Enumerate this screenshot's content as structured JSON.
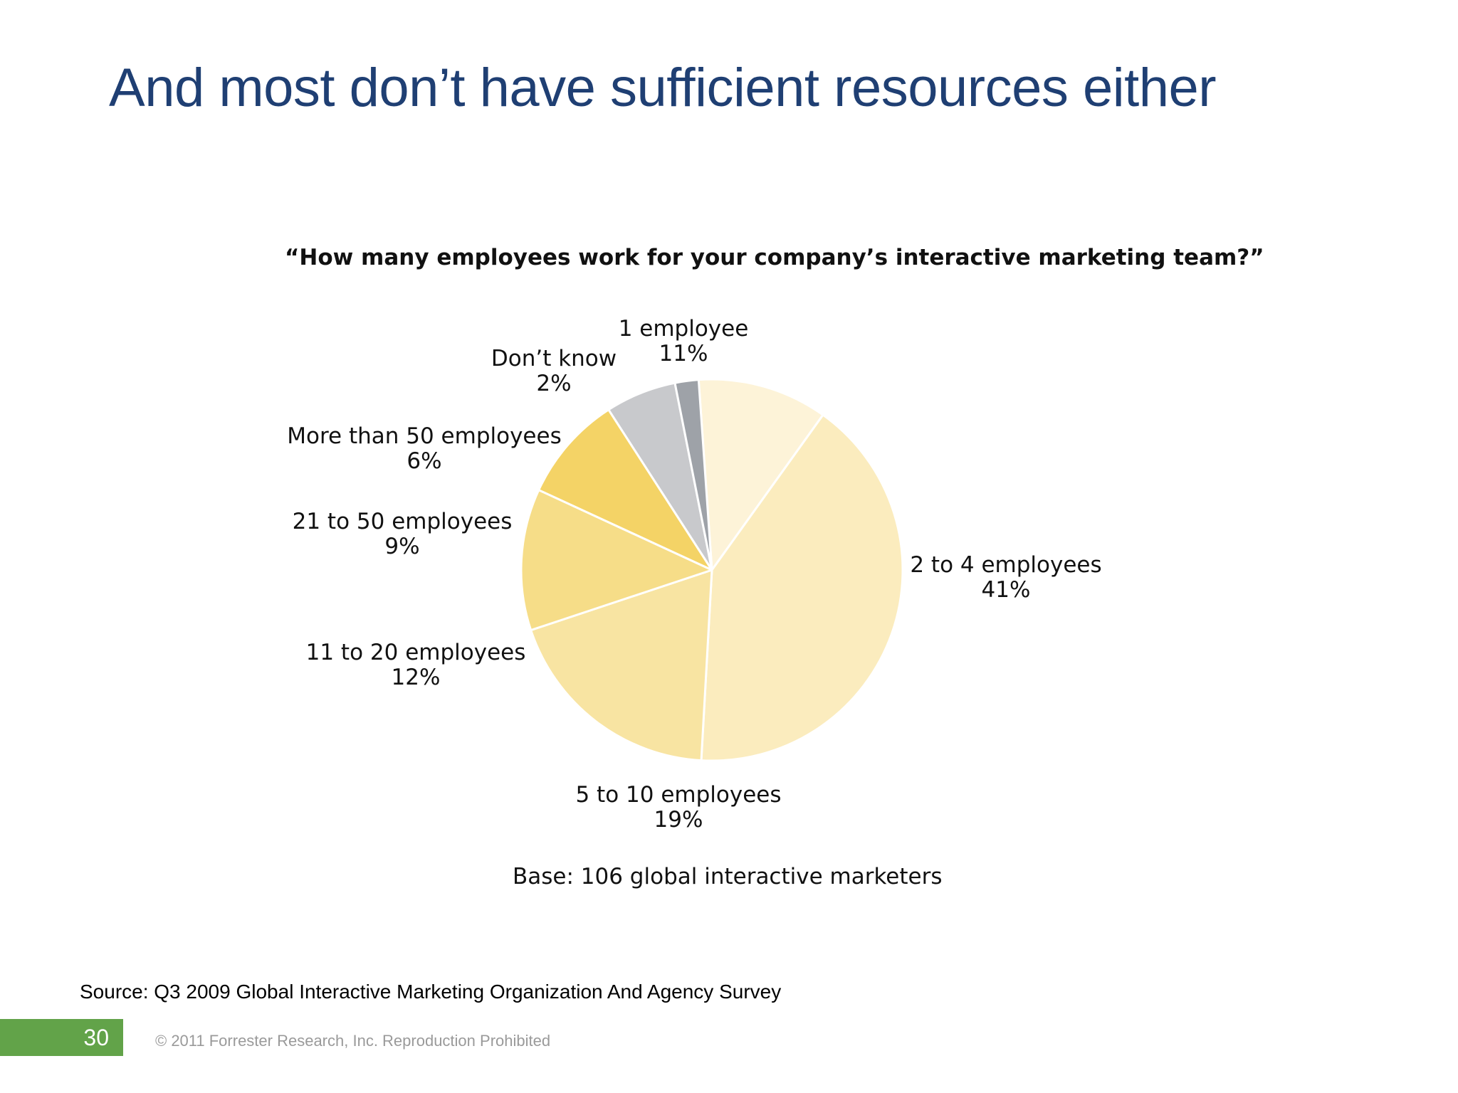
{
  "slide": {
    "title": "And most don’t have sufficient resources either",
    "source": "Source: Q3 2009 Global Interactive Marketing Organization And Agency Survey",
    "page_number": "30",
    "copyright": "© 2011 Forrester Research, Inc. Reproduction Prohibited"
  },
  "chart_data": {
    "type": "pie",
    "title": "“How many employees work for your company’s interactive marketing team?”",
    "note": "Base: 106 global interactive marketers",
    "slices": [
      {
        "name": "1 employee",
        "value": 11,
        "value_label": "11%",
        "color": "#fdf3d8"
      },
      {
        "name": "2 to 4 employees",
        "value": 41,
        "value_label": "41%",
        "color": "#fbecbe"
      },
      {
        "name": "5 to 10 employees",
        "value": 19,
        "value_label": "19%",
        "color": "#f8e4a2"
      },
      {
        "name": "11 to 20 employees",
        "value": 12,
        "value_label": "12%",
        "color": "#f6dd88"
      },
      {
        "name": "21 to 50 employees",
        "value": 9,
        "value_label": "9%",
        "color": "#f4d366"
      },
      {
        "name": "More than 50 employees",
        "value": 6,
        "value_label": "6%",
        "color": "#c8c9cc"
      },
      {
        "name": "Don’t know",
        "value": 2,
        "value_label": "2%",
        "color": "#9ea2a8"
      }
    ]
  }
}
